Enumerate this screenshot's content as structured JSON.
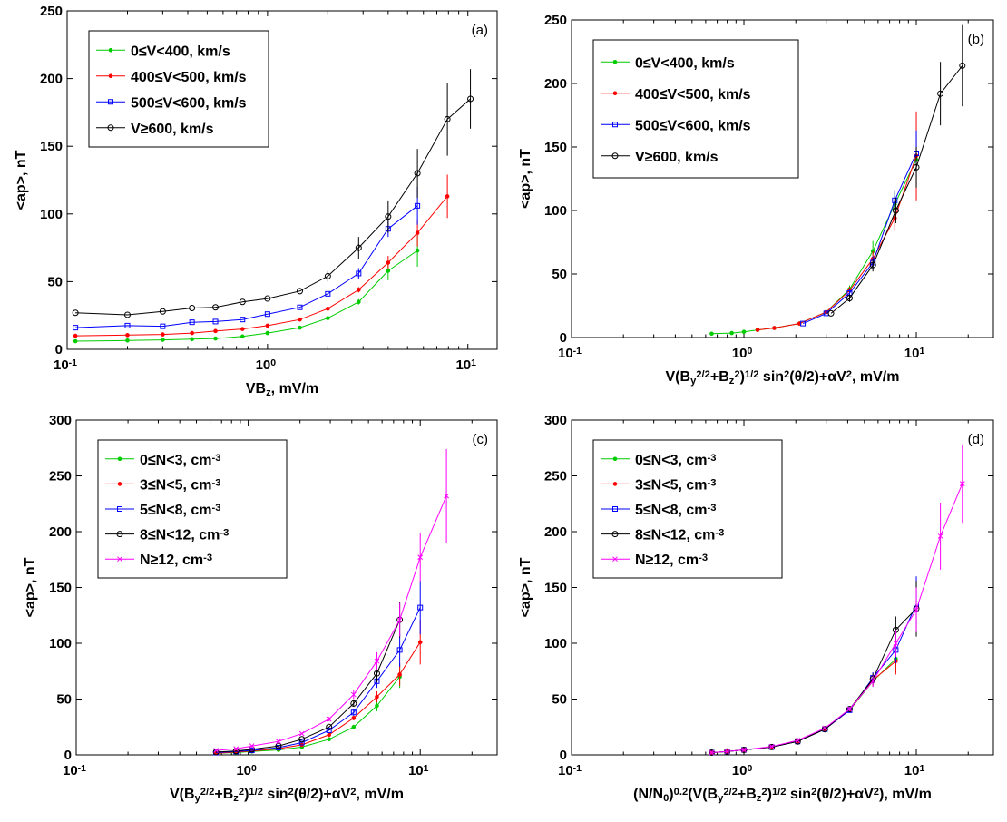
{
  "figure": {
    "panels": [
      {
        "tag": "(a)",
        "xlabel": "VB_z, mV/m",
        "ylabel": "<ap>, nT"
      },
      {
        "tag": "(b)",
        "xlabel": "V(B_y^2/2+B_z^2)^1/2 sin^2(θ/2)+αV^2, mV/m",
        "ylabel": "<ap>, nT"
      },
      {
        "tag": "(c)",
        "xlabel": "V(B_y^2/2+B_z^2)^1/2 sin^2(θ/2)+αV^2, mV/m",
        "ylabel": "<ap>, nT"
      },
      {
        "tag": "(d)",
        "xlabel": "(N/N_0)^0.2(V(B_y^2/2+B_z^2)^1/2 sin^2(θ/2)+αV^2), mV/m",
        "ylabel": "<ap>, nT"
      }
    ]
  },
  "chart_data": [
    {
      "type": "line",
      "panel": "(a)",
      "xlabel": "VB_z, mV/m",
      "ylabel": "<ap>, nT",
      "xscale": "log",
      "xlim": [
        0.1,
        14
      ],
      "ylim": [
        0,
        250
      ],
      "yticks": [
        0,
        50,
        100,
        150,
        200,
        250
      ],
      "xticks": [
        0.1,
        1,
        10
      ],
      "xticklabels": [
        "10^-1",
        "10^0",
        "10^1"
      ],
      "legend_position": "top-left",
      "series": [
        {
          "name": "0≤V<400, km/s",
          "color": "#00cc00",
          "marker": "dot",
          "x": [
            0.11,
            0.2,
            0.3,
            0.42,
            0.55,
            0.75,
            1.0,
            1.45,
            2.0,
            2.85,
            4.0,
            5.6
          ],
          "y": [
            6,
            6.5,
            7,
            7.5,
            8,
            9.5,
            12,
            16,
            23,
            35,
            58,
            73
          ],
          "err": [
            0,
            0,
            0,
            0,
            0,
            0,
            0,
            0,
            0,
            2,
            7,
            12
          ]
        },
        {
          "name": "400≤V<500, km/s",
          "color": "#ff0000",
          "marker": "dot",
          "x": [
            0.11,
            0.2,
            0.3,
            0.42,
            0.55,
            0.75,
            1.0,
            1.45,
            2.0,
            2.85,
            4.0,
            5.6,
            7.9
          ],
          "y": [
            10,
            10.5,
            11,
            12,
            13.5,
            15,
            17.5,
            22,
            30,
            44,
            64,
            86,
            113
          ],
          "err": [
            0,
            0,
            0,
            0,
            0,
            0,
            0,
            0,
            0,
            2,
            5,
            10,
            16
          ]
        },
        {
          "name": "500≤V<600, km/s",
          "color": "#0000ff",
          "marker": "square",
          "x": [
            0.11,
            0.2,
            0.3,
            0.42,
            0.55,
            0.75,
            1.0,
            1.45,
            2.0,
            2.85,
            4.0,
            5.6
          ],
          "y": [
            16,
            17.5,
            17,
            20,
            20.5,
            22,
            26,
            31,
            41,
            56,
            89,
            106
          ],
          "err": [
            0,
            0,
            0,
            0,
            0,
            0,
            0,
            0,
            0,
            4,
            6,
            14
          ]
        },
        {
          "name": "V≥600, km/s",
          "color": "#000000",
          "marker": "circle",
          "x": [
            0.11,
            0.2,
            0.3,
            0.42,
            0.55,
            0.75,
            1.0,
            1.45,
            2.0,
            2.85,
            4.0,
            5.6,
            7.9,
            10.3
          ],
          "y": [
            27,
            25.5,
            28,
            30.5,
            31,
            35,
            37.5,
            43,
            54,
            75,
            98,
            130,
            170,
            185
          ],
          "err": [
            0,
            0,
            0,
            0,
            0,
            0,
            0,
            0,
            4,
            8,
            12,
            18,
            27,
            22
          ]
        }
      ]
    },
    {
      "type": "line",
      "panel": "(b)",
      "xlabel": "V(B_y^2/2+B_z^2)^1/2 sin^2(θ/2)+αV^2, mV/m",
      "ylabel": "<ap>, nT",
      "xscale": "log",
      "xlim": [
        0.1,
        28
      ],
      "ylim": [
        0,
        250
      ],
      "yticks": [
        0,
        50,
        100,
        150,
        200,
        250
      ],
      "xticks": [
        0.1,
        1,
        10
      ],
      "xticklabels": [
        "10^-1",
        "10^0",
        "10^1"
      ],
      "legend_position": "top-left",
      "series": [
        {
          "name": "0≤V<400, km/s",
          "color": "#00cc00",
          "marker": "dot",
          "x": [
            0.65,
            0.85,
            1.0,
            1.2,
            1.5,
            2.1,
            3.0,
            4.1,
            5.6,
            7.5,
            10.0
          ],
          "y": [
            3,
            3.5,
            4.5,
            6,
            7.5,
            11,
            20,
            38,
            68,
            105,
            140
          ],
          "err": [
            0,
            0,
            0,
            0,
            0,
            0,
            0,
            3,
            8,
            10,
            20
          ]
        },
        {
          "name": "400≤V<500, km/s",
          "color": "#ff0000",
          "marker": "dot",
          "x": [
            1.2,
            1.5,
            2.1,
            3.0,
            4.1,
            5.6,
            7.5,
            10.0
          ],
          "y": [
            6,
            7.5,
            11,
            20,
            37,
            62,
            94,
            143
          ],
          "err": [
            0,
            0,
            0,
            0,
            3,
            6,
            10,
            35
          ]
        },
        {
          "name": "500≤V<600, km/s",
          "color": "#0000ff",
          "marker": "square",
          "x": [
            2.2,
            3.0,
            4.1,
            5.6,
            7.5,
            10.0
          ],
          "y": [
            11,
            19,
            35,
            59,
            108,
            145
          ],
          "err": [
            0,
            0,
            3,
            5,
            8,
            18
          ]
        },
        {
          "name": "V≥600, km/s",
          "color": "#000000",
          "marker": "circle",
          "x": [
            3.2,
            4.1,
            5.6,
            7.6,
            10.0,
            13.8,
            18.5
          ],
          "y": [
            19,
            31,
            57,
            100,
            134,
            192,
            214
          ],
          "err": [
            0,
            3,
            5,
            10,
            16,
            25,
            32
          ]
        }
      ]
    },
    {
      "type": "line",
      "panel": "(c)",
      "xlabel": "V(B_y^2/2+B_z^2)^1/2 sin^2(θ/2)+αV^2, mV/m",
      "ylabel": "<ap>, nT",
      "xscale": "log",
      "xlim": [
        0.1,
        28
      ],
      "ylim": [
        0,
        300
      ],
      "yticks": [
        0,
        50,
        100,
        150,
        200,
        250,
        300
      ],
      "xticks": [
        0.1,
        1,
        10
      ],
      "xticklabels": [
        "10^-1",
        "10^0",
        "10^1"
      ],
      "legend_position": "top-left",
      "series": [
        {
          "name": "0≤N<3, cm^-3",
          "color": "#00cc00",
          "marker": "dot",
          "x": [
            0.65,
            0.85,
            1.05,
            1.5,
            2.05,
            2.95,
            4.1,
            5.6,
            7.6
          ],
          "y": [
            1.5,
            2,
            3,
            4.5,
            7,
            14,
            25,
            44,
            70
          ],
          "err": [
            0,
            0,
            0,
            0,
            0,
            0,
            2,
            5,
            10
          ]
        },
        {
          "name": "3≤N<5, cm^-3",
          "color": "#ff0000",
          "marker": "dot",
          "x": [
            0.65,
            0.85,
            1.05,
            1.5,
            2.05,
            2.95,
            4.1,
            5.6,
            7.6,
            10.0
          ],
          "y": [
            1.5,
            2.5,
            3.5,
            5.5,
            9,
            18,
            33,
            52,
            72,
            101
          ],
          "err": [
            0,
            0,
            0,
            0,
            0,
            0,
            2,
            5,
            10,
            20
          ]
        },
        {
          "name": "5≤N<8, cm^-3",
          "color": "#0000ff",
          "marker": "square",
          "x": [
            0.65,
            0.85,
            1.05,
            1.5,
            2.05,
            2.95,
            4.1,
            5.6,
            7.6,
            10.0
          ],
          "y": [
            2,
            3,
            4,
            6.5,
            11,
            22,
            38,
            66,
            94,
            132
          ],
          "err": [
            0,
            0,
            0,
            0,
            0,
            0,
            3,
            6,
            15,
            24
          ]
        },
        {
          "name": "8≤N<12, cm^-3",
          "color": "#000000",
          "marker": "circle",
          "x": [
            0.65,
            0.85,
            1.05,
            1.5,
            2.05,
            2.95,
            4.1,
            5.6,
            7.6
          ],
          "y": [
            2.5,
            3.5,
            5,
            8,
            14,
            25,
            46,
            73,
            121
          ],
          "err": [
            0,
            0,
            0,
            0,
            0,
            0,
            3,
            8,
            16
          ]
        },
        {
          "name": "N≥12, cm^-3",
          "color": "#ff00ff",
          "marker": "x",
          "x": [
            0.65,
            0.85,
            1.05,
            1.5,
            2.05,
            2.95,
            4.1,
            5.6,
            7.6,
            10.0,
            14.2
          ],
          "y": [
            4,
            5.5,
            8,
            12,
            19,
            32,
            54,
            84,
            121,
            177,
            232
          ],
          "err": [
            0,
            0,
            0,
            0,
            0,
            2,
            4,
            8,
            15,
            22,
            42
          ]
        }
      ]
    },
    {
      "type": "line",
      "panel": "(d)",
      "xlabel": "(N/N_0)^0.2(V(B_y^2/2+B_z^2)^1/2 sin^2(θ/2)+αV^2), mV/m",
      "ylabel": "<ap>, nT",
      "xscale": "log",
      "xlim": [
        0.1,
        28
      ],
      "ylim": [
        0,
        300
      ],
      "yticks": [
        0,
        50,
        100,
        150,
        200,
        250,
        300
      ],
      "xticks": [
        0.1,
        1,
        10
      ],
      "xticklabels": [
        "10^-1",
        "10^0",
        "10^1"
      ],
      "legend_position": "top-left",
      "series": [
        {
          "name": "0≤N<3, cm^-3",
          "color": "#00cc00",
          "marker": "dot",
          "x": [
            0.65,
            0.8,
            1.0,
            1.45,
            2.05,
            2.95,
            4.1,
            5.6,
            7.6
          ],
          "y": [
            2,
            3,
            4.5,
            7,
            12,
            23,
            40,
            66,
            86
          ],
          "err": [
            0,
            0,
            0,
            0,
            0,
            0,
            2,
            5,
            12
          ]
        },
        {
          "name": "3≤N<5, cm^-3",
          "color": "#ff0000",
          "marker": "dot",
          "x": [
            0.65,
            0.8,
            1.0,
            1.45,
            2.05,
            2.95,
            4.1,
            5.6,
            7.6
          ],
          "y": [
            2,
            3,
            4.5,
            7,
            12,
            23,
            40,
            67,
            84
          ],
          "err": [
            0,
            0,
            0,
            0,
            0,
            0,
            2,
            5,
            12
          ]
        },
        {
          "name": "5≤N<8, cm^-3",
          "color": "#0000ff",
          "marker": "square",
          "x": [
            0.65,
            0.8,
            1.0,
            1.45,
            2.05,
            2.95,
            4.1,
            5.6,
            7.6,
            10.0
          ],
          "y": [
            2,
            3,
            4.5,
            7,
            12,
            23,
            40,
            69,
            94,
            135
          ],
          "err": [
            0,
            0,
            0,
            0,
            0,
            0,
            2,
            5,
            12,
            25
          ]
        },
        {
          "name": "8≤N<12, cm^-3",
          "color": "#000000",
          "marker": "circle",
          "x": [
            0.65,
            0.8,
            1.0,
            1.45,
            2.05,
            2.95,
            4.1,
            5.6,
            7.6,
            10.0
          ],
          "y": [
            2,
            3,
            4.5,
            7,
            12,
            23,
            41,
            68,
            112,
            131
          ],
          "err": [
            0,
            0,
            0,
            0,
            0,
            0,
            2,
            5,
            12,
            25
          ]
        },
        {
          "name": "N≥12, cm^-3",
          "color": "#ff00ff",
          "marker": "x",
          "x": [
            0.65,
            0.8,
            1.0,
            1.45,
            2.05,
            2.95,
            4.1,
            5.6,
            7.6,
            10.0,
            13.8,
            18.5
          ],
          "y": [
            2,
            3,
            4.5,
            7.5,
            13,
            24,
            41,
            66,
            100,
            130,
            196,
            243
          ],
          "err": [
            0,
            0,
            0,
            0,
            0,
            0,
            2,
            5,
            12,
            20,
            30,
            35
          ]
        }
      ]
    }
  ]
}
